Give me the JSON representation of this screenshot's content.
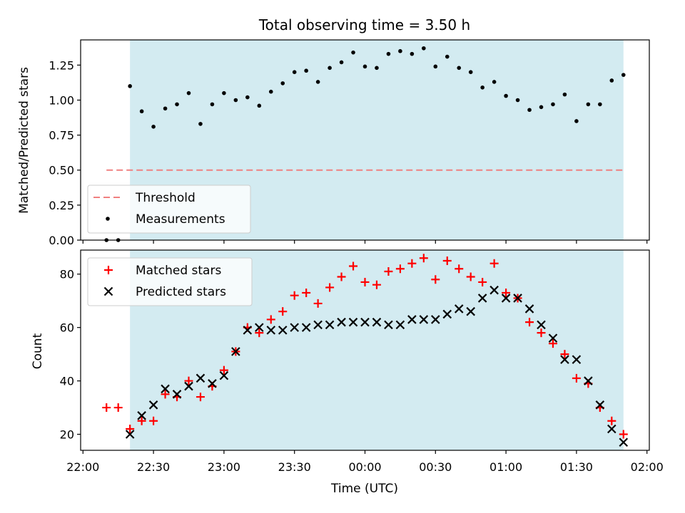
{
  "chart_data": [
    {
      "type": "scatter",
      "title": "Total observing time = 3.50 h",
      "ylabel": "Matched/Predicted stars",
      "ylim": [
        0,
        1.43
      ],
      "yticks": [
        0.0,
        0.25,
        0.5,
        0.75,
        1.0,
        1.25
      ],
      "ytick_labels": [
        "0.00",
        "0.25",
        "0.50",
        "0.75",
        "1.00",
        "1.25"
      ],
      "xlim": [
        "21:59",
        "02:01"
      ],
      "shaded_region": {
        "x": [
          "22:20",
          "01:50"
        ],
        "color": "#d3ebf1"
      },
      "legend_placement": "lower-left",
      "threshold": {
        "name": "Threshold",
        "y": 0.5,
        "x": [
          "22:10",
          "01:50"
        ],
        "color": "#f08080",
        "style": "dashed"
      },
      "series": [
        {
          "name": "Measurements",
          "color": "#000000",
          "marker": "dot",
          "x": [
            "22:10",
            "22:15",
            "22:20",
            "22:25",
            "22:30",
            "22:35",
            "22:40",
            "22:45",
            "22:50",
            "22:55",
            "23:00",
            "23:05",
            "23:10",
            "23:15",
            "23:20",
            "23:25",
            "23:30",
            "23:35",
            "23:40",
            "23:45",
            "23:50",
            "23:55",
            "00:00",
            "00:05",
            "00:10",
            "00:15",
            "00:20",
            "00:25",
            "00:30",
            "00:35",
            "00:40",
            "00:45",
            "00:50",
            "00:55",
            "01:00",
            "01:05",
            "01:10",
            "01:15",
            "01:20",
            "01:25",
            "01:30",
            "01:35",
            "01:40",
            "01:45",
            "01:50"
          ],
          "y": [
            0.0,
            0.0,
            1.1,
            0.92,
            0.81,
            0.94,
            0.97,
            1.05,
            0.83,
            0.97,
            1.05,
            1.0,
            1.02,
            0.96,
            1.06,
            1.12,
            1.2,
            1.21,
            1.13,
            1.23,
            1.27,
            1.34,
            1.24,
            1.23,
            1.33,
            1.35,
            1.33,
            1.37,
            1.24,
            1.31,
            1.23,
            1.2,
            1.09,
            1.13,
            1.03,
            1.0,
            0.93,
            0.95,
            0.97,
            1.04,
            0.85,
            0.97,
            0.97,
            1.14,
            1.18
          ]
        }
      ]
    },
    {
      "type": "scatter",
      "ylabel": "Count",
      "xlabel": "Time (UTC)",
      "ylim": [
        14,
        89
      ],
      "yticks": [
        20,
        40,
        60,
        80
      ],
      "ytick_labels": [
        "20",
        "40",
        "60",
        "80"
      ],
      "xlim": [
        "21:59",
        "02:01"
      ],
      "xtick_labels": [
        "22:00",
        "22:30",
        "23:00",
        "23:30",
        "00:00",
        "00:30",
        "01:00",
        "01:30",
        "02:00"
      ],
      "shaded_region": {
        "x": [
          "22:20",
          "01:50"
        ],
        "color": "#d3ebf1"
      },
      "legend_placement": "upper-left",
      "series": [
        {
          "name": "Matched stars",
          "color": "#ff0000",
          "marker": "plus",
          "x": [
            "22:10",
            "22:15",
            "22:20",
            "22:25",
            "22:30",
            "22:35",
            "22:40",
            "22:45",
            "22:50",
            "22:55",
            "23:00",
            "23:05",
            "23:10",
            "23:15",
            "23:20",
            "23:25",
            "23:30",
            "23:35",
            "23:40",
            "23:45",
            "23:50",
            "23:55",
            "00:00",
            "00:05",
            "00:10",
            "00:15",
            "00:20",
            "00:25",
            "00:30",
            "00:35",
            "00:40",
            "00:45",
            "00:50",
            "00:55",
            "01:00",
            "01:05",
            "01:10",
            "01:15",
            "01:20",
            "01:25",
            "01:30",
            "01:35",
            "01:40",
            "01:45",
            "01:50"
          ],
          "y": [
            30,
            30,
            22,
            25,
            25,
            35,
            34,
            40,
            34,
            38,
            44,
            51,
            60,
            58,
            63,
            66,
            72,
            73,
            69,
            75,
            79,
            83,
            77,
            76,
            81,
            82,
            84,
            86,
            78,
            85,
            82,
            79,
            77,
            84,
            73,
            71,
            62,
            58,
            54,
            50,
            41,
            39,
            30,
            25,
            20
          ]
        },
        {
          "name": "Predicted stars",
          "color": "#000000",
          "marker": "x",
          "x": [
            "22:20",
            "22:25",
            "22:30",
            "22:35",
            "22:40",
            "22:45",
            "22:50",
            "22:55",
            "23:00",
            "23:05",
            "23:10",
            "23:15",
            "23:20",
            "23:25",
            "23:30",
            "23:35",
            "23:40",
            "23:45",
            "23:50",
            "23:55",
            "00:00",
            "00:05",
            "00:10",
            "00:15",
            "00:20",
            "00:25",
            "00:30",
            "00:35",
            "00:40",
            "00:45",
            "00:50",
            "00:55",
            "01:00",
            "01:05",
            "01:10",
            "01:15",
            "01:20",
            "01:25",
            "01:30",
            "01:35",
            "01:40",
            "01:45",
            "01:50"
          ],
          "y": [
            20,
            27,
            31,
            37,
            35,
            38,
            41,
            39,
            42,
            51,
            59,
            60,
            59,
            59,
            60,
            60,
            61,
            61,
            62,
            62,
            62,
            62,
            61,
            61,
            63,
            63,
            63,
            65,
            67,
            66,
            71,
            74,
            71,
            71,
            67,
            61,
            56,
            48,
            48,
            40,
            31,
            22,
            17
          ]
        }
      ]
    }
  ]
}
